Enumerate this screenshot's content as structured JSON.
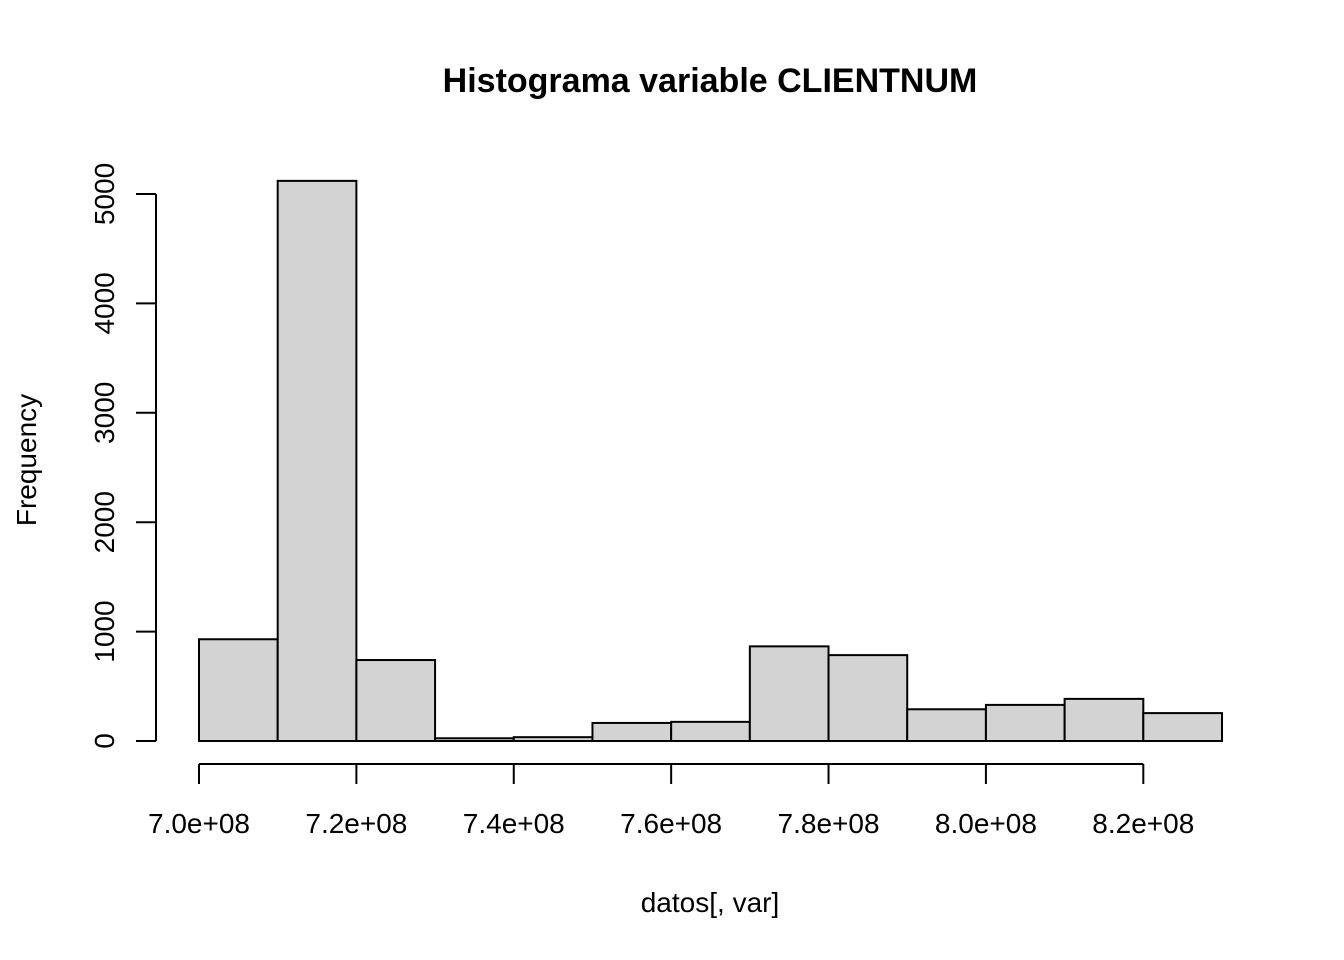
{
  "chart_data": {
    "type": "bar",
    "title": "Histograma variable CLIENTNUM",
    "xlabel": "datos[, var]",
    "ylabel": "Frequency",
    "bin_edges": [
      700000000,
      710000000,
      720000000,
      730000000,
      740000000,
      750000000,
      760000000,
      770000000,
      780000000,
      790000000,
      800000000,
      810000000,
      820000000,
      830000000
    ],
    "values": [
      930,
      5120,
      740,
      25,
      35,
      165,
      175,
      865,
      785,
      290,
      330,
      385,
      255
    ],
    "xlim": [
      700000000,
      830000000
    ],
    "ylim": [
      0,
      5000
    ],
    "x_ticks": [
      700000000,
      720000000,
      740000000,
      760000000,
      780000000,
      800000000,
      820000000
    ],
    "x_tick_labels": [
      "7.0e+08",
      "7.2e+08",
      "7.4e+08",
      "7.6e+08",
      "7.8e+08",
      "8.0e+08",
      "8.2e+08"
    ],
    "y_ticks": [
      0,
      1000,
      2000,
      3000,
      4000,
      5000
    ],
    "y_tick_labels": [
      "0",
      "1000",
      "2000",
      "3000",
      "4000",
      "5000"
    ],
    "bar_fill": "#d3d3d3",
    "bar_stroke": "#000000",
    "grid": false
  }
}
